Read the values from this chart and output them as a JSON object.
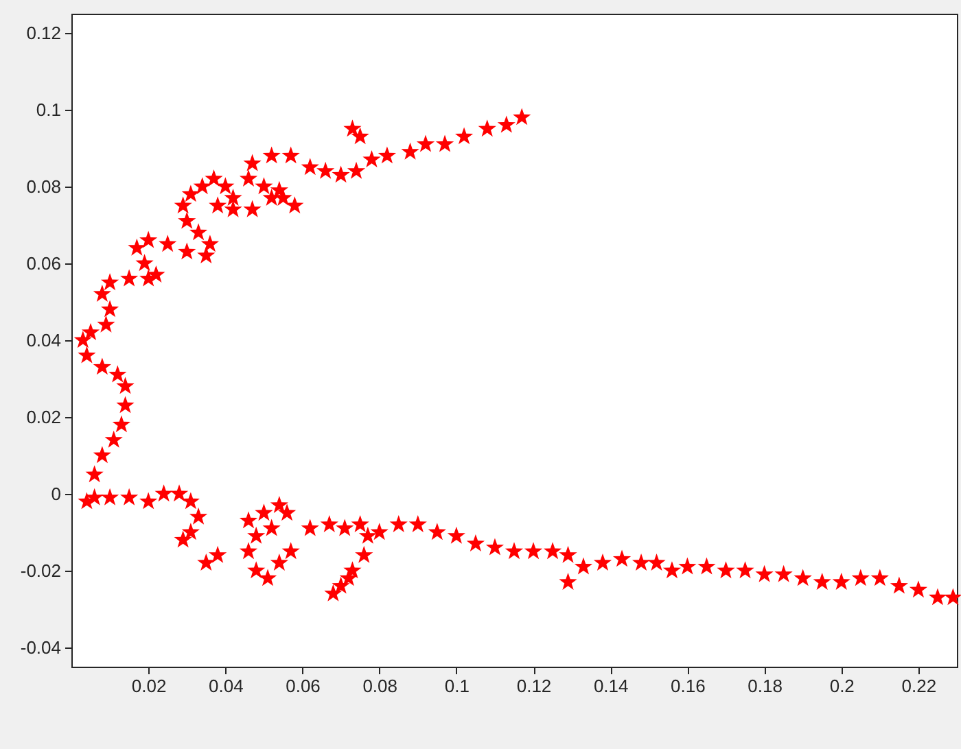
{
  "chart_data": {
    "type": "scatter",
    "marker": "star",
    "grid": false,
    "xlim": [
      0,
      0.23
    ],
    "ylim": [
      -0.045,
      0.125
    ],
    "xticks": [
      0.02,
      0.04,
      0.06,
      0.08,
      0.1,
      0.12,
      0.14,
      0.16,
      0.18,
      0.2,
      0.22
    ],
    "yticks": [
      -0.04,
      -0.02,
      0,
      0.02,
      0.04,
      0.06,
      0.08,
      0.1,
      0.12
    ],
    "series": [
      {
        "color": "#ff0000",
        "x": [
          0.004,
          0.006,
          0.008,
          0.011,
          0.013,
          0.014,
          0.014,
          0.012,
          0.008,
          0.004,
          0.003,
          0.005,
          0.009,
          0.01,
          0.008,
          0.01,
          0.015,
          0.02,
          0.022,
          0.019,
          0.017,
          0.02,
          0.025,
          0.03,
          0.035,
          0.036,
          0.033,
          0.03,
          0.029,
          0.031,
          0.034,
          0.037,
          0.04,
          0.042,
          0.038,
          0.042,
          0.047,
          0.052,
          0.054,
          0.05,
          0.046,
          0.047,
          0.052,
          0.057,
          0.055,
          0.058,
          0.062,
          0.066,
          0.07,
          0.074,
          0.078,
          0.082,
          0.075,
          0.073,
          0.088,
          0.092,
          0.097,
          0.102,
          0.108,
          0.113,
          0.117,
          0.006,
          0.01,
          0.015,
          0.02,
          0.024,
          0.028,
          0.031,
          0.033,
          0.031,
          0.029,
          0.035,
          0.038,
          0.046,
          0.05,
          0.054,
          0.056,
          0.052,
          0.048,
          0.046,
          0.048,
          0.051,
          0.054,
          0.057,
          0.062,
          0.067,
          0.071,
          0.075,
          0.077,
          0.076,
          0.073,
          0.07,
          0.068,
          0.072,
          0.08,
          0.085,
          0.09,
          0.095,
          0.1,
          0.105,
          0.11,
          0.115,
          0.12,
          0.125,
          0.129,
          0.129,
          0.133,
          0.138,
          0.143,
          0.148,
          0.152,
          0.156,
          0.16,
          0.165,
          0.17,
          0.175,
          0.18,
          0.185,
          0.19,
          0.195,
          0.2,
          0.205,
          0.21,
          0.215,
          0.22,
          0.225,
          0.229
        ],
        "values": [
          -0.002,
          0.005,
          0.01,
          0.014,
          0.018,
          0.023,
          0.028,
          0.031,
          0.033,
          0.036,
          0.04,
          0.042,
          0.044,
          0.048,
          0.052,
          0.055,
          0.056,
          0.056,
          0.057,
          0.06,
          0.064,
          0.066,
          0.065,
          0.063,
          0.062,
          0.065,
          0.068,
          0.071,
          0.075,
          0.078,
          0.08,
          0.082,
          0.08,
          0.077,
          0.075,
          0.074,
          0.074,
          0.077,
          0.079,
          0.08,
          0.082,
          0.086,
          0.088,
          0.088,
          0.077,
          0.075,
          0.085,
          0.084,
          0.083,
          0.084,
          0.087,
          0.088,
          0.093,
          0.095,
          0.089,
          0.091,
          0.091,
          0.093,
          0.095,
          0.096,
          0.098,
          -0.001,
          -0.001,
          -0.001,
          -0.002,
          0.0,
          0.0,
          -0.002,
          -0.006,
          -0.01,
          -0.012,
          -0.018,
          -0.016,
          -0.007,
          -0.005,
          -0.003,
          -0.005,
          -0.009,
          -0.011,
          -0.015,
          -0.02,
          -0.022,
          -0.018,
          -0.015,
          -0.009,
          -0.008,
          -0.009,
          -0.008,
          -0.011,
          -0.016,
          -0.02,
          -0.024,
          -0.026,
          -0.022,
          -0.01,
          -0.008,
          -0.008,
          -0.01,
          -0.011,
          -0.013,
          -0.014,
          -0.015,
          -0.015,
          -0.015,
          -0.016,
          -0.023,
          -0.019,
          -0.018,
          -0.017,
          -0.018,
          -0.018,
          -0.02,
          -0.019,
          -0.019,
          -0.02,
          -0.02,
          -0.021,
          -0.021,
          -0.022,
          -0.023,
          -0.023,
          -0.022,
          -0.022,
          -0.024,
          -0.025,
          -0.027,
          -0.027
        ]
      }
    ]
  }
}
